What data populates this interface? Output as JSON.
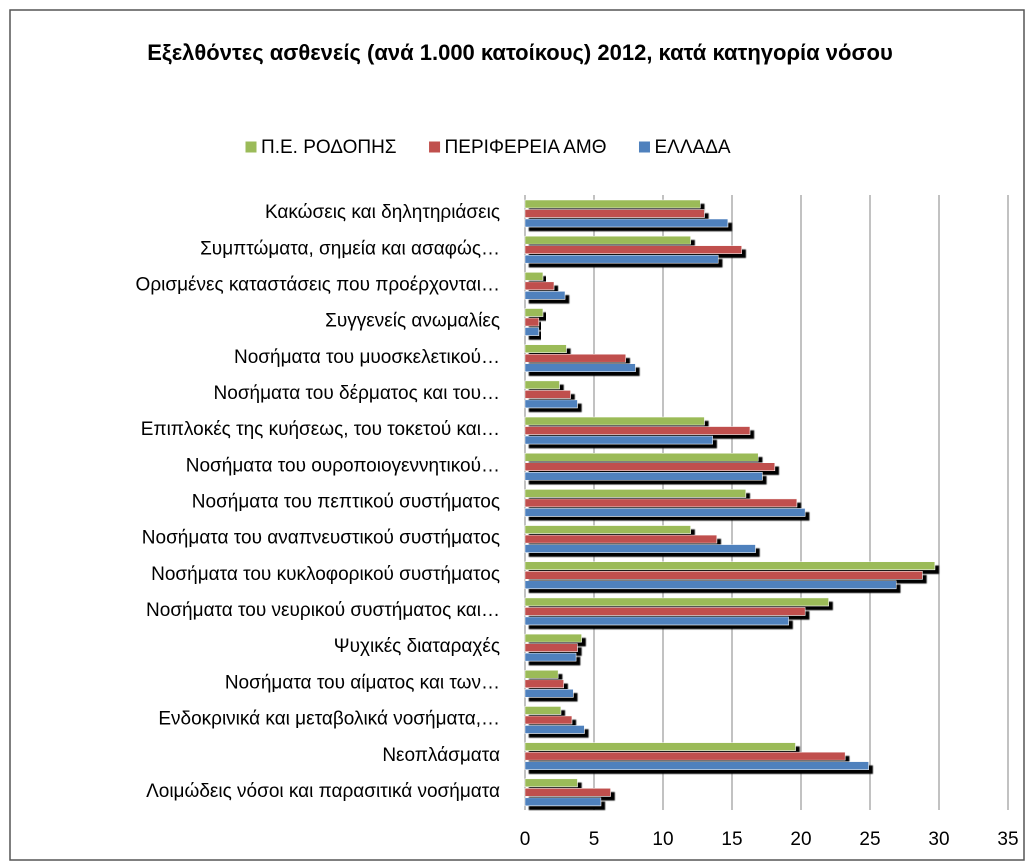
{
  "chart_data": {
    "type": "bar",
    "orientation": "horizontal",
    "title": "Εξελθόντες ασθενείς (ανά 1.000 κατοίκους) 2012, κατά κατηγορία νόσου",
    "categories": [
      "Κακώσεις  και  δηλητηριάσεις",
      "Συμπτώματα, σημεία και ασαφώς…",
      "Ορισμένες καταστάσεις που προέρχονται…",
      "Συγγενείς ανωμαλίες",
      "Νοσήματα του μυοσκελετικού…",
      "Νοσήματα του δέρματος και του…",
      "Επιπλοκές της κυήσεως, του τοκετού και…",
      "Νοσήματα του ουροποιογεννητικού…",
      "Νοσήματα του πεπτικού συστήματος",
      "Νοσήματα του αναπνευστικού συστήματος",
      "Νοσήματα του κυκλοφορικού συστήματος",
      "Νοσήματα του νευρικού συστήματος και…",
      "Ψυχικές διαταραχές",
      "Νοσήματα του αίματος και των…",
      "Ενδοκρινικά και μεταβολικά νοσήματα,…",
      "Νεοπλάσματα",
      "Λοιμώδεις νόσοι και παρασιτικά νοσήματα"
    ],
    "series": [
      {
        "name": "Π.Ε. ΡΟΔΟΠΗΣ",
        "color": "#9bbb59",
        "values": [
          12.7,
          12.0,
          1.3,
          1.3,
          3.0,
          2.5,
          13.0,
          16.9,
          16.0,
          12.0,
          29.7,
          22.0,
          4.1,
          2.4,
          2.6,
          19.6,
          3.8
        ]
      },
      {
        "name": "ΠΕΡΙΦΕΡΕΙΑ  ΑΜΘ",
        "color": "#c0504d",
        "values": [
          13.0,
          15.7,
          2.1,
          1.0,
          7.3,
          3.3,
          16.3,
          18.1,
          19.7,
          13.9,
          28.8,
          20.3,
          3.8,
          2.8,
          3.4,
          23.2,
          6.2
        ]
      },
      {
        "name": "ΕΛΛΑΔΑ",
        "color": "#4f81bd",
        "values": [
          14.7,
          14.0,
          2.9,
          1.0,
          8.0,
          3.8,
          13.6,
          17.2,
          20.3,
          16.7,
          26.9,
          19.1,
          3.7,
          3.5,
          4.3,
          24.9,
          5.5
        ]
      }
    ],
    "xlim": [
      0,
      35
    ],
    "xticks": [
      0,
      5,
      10,
      15,
      20,
      25,
      30,
      35
    ],
    "grid": true,
    "legend": "top"
  }
}
